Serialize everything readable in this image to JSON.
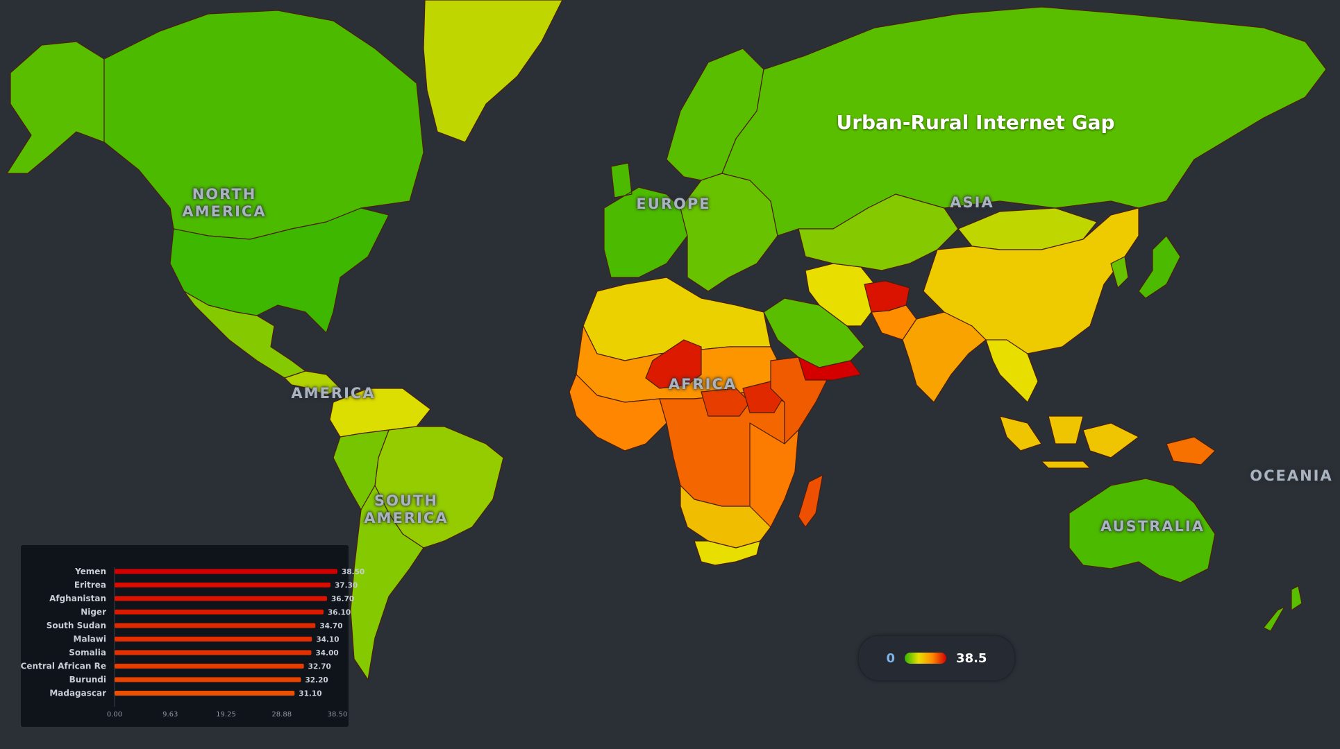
{
  "title": "Urban-Rural Internet Gap",
  "continents": [
    {
      "key": "north-america",
      "lines": [
        "NORTH",
        "AMERICA"
      ]
    },
    {
      "key": "america",
      "lines": [
        "AMERICA"
      ]
    },
    {
      "key": "south-america",
      "lines": [
        "SOUTH",
        "AMERICA"
      ]
    },
    {
      "key": "europe",
      "lines": [
        "EUROPE"
      ]
    },
    {
      "key": "africa",
      "lines": [
        "AFRICA"
      ]
    },
    {
      "key": "asia",
      "lines": [
        "ASIA"
      ]
    },
    {
      "key": "oceania",
      "lines": [
        "OCEANIA"
      ]
    },
    {
      "key": "australia",
      "lines": [
        "AUSTRALIA"
      ]
    }
  ],
  "legend": {
    "min_label": "0",
    "max_label": "38.5",
    "min": 0,
    "max": 38.5,
    "colors": [
      "#2fb400",
      "#e8e000",
      "#ff8a00",
      "#d40000"
    ]
  },
  "colors": {
    "background": "#2b2f36",
    "border": "#4a1e12",
    "panel": "#0f141b"
  },
  "chart_data": {
    "type": "bar",
    "orientation": "horizontal",
    "categories": [
      "Yemen",
      "Eritrea",
      "Afghanistan",
      "Niger",
      "South Sudan",
      "Malawi",
      "Somalia",
      "Central African Re",
      "Burundi",
      "Madagascar"
    ],
    "values": [
      38.5,
      37.3,
      36.7,
      36.1,
      34.7,
      34.1,
      34.0,
      32.7,
      32.2,
      31.1
    ],
    "value_labels": [
      "38.50",
      "37.30",
      "36.70",
      "36.10",
      "34.70",
      "34.10",
      "34.00",
      "32.70",
      "32.20",
      "31.10"
    ],
    "xticks": [
      "0.00",
      "9.63",
      "19.25",
      "28.88",
      "38.50"
    ],
    "xlim": [
      0,
      38.5
    ],
    "title": "",
    "xlabel": "",
    "ylabel": ""
  },
  "map": {
    "regions": [
      {
        "name": "greenland",
        "value": 10
      },
      {
        "name": "canada",
        "value": 2
      },
      {
        "name": "usa",
        "value": 1
      },
      {
        "name": "alaska",
        "value": 3
      },
      {
        "name": "mexico",
        "value": 6
      },
      {
        "name": "central-america",
        "value": 9
      },
      {
        "name": "colombia-venezuela",
        "value": 12
      },
      {
        "name": "brazil",
        "value": 7
      },
      {
        "name": "andes",
        "value": 5
      },
      {
        "name": "southern-cone",
        "value": 6
      },
      {
        "name": "western-europe",
        "value": 2
      },
      {
        "name": "scandinavia",
        "value": 3
      },
      {
        "name": "eastern-europe",
        "value": 4
      },
      {
        "name": "russia",
        "value": 3
      },
      {
        "name": "north-africa",
        "value": 15
      },
      {
        "name": "sahel",
        "value": 24
      },
      {
        "name": "niger",
        "value": 36.1
      },
      {
        "name": "west-africa",
        "value": 26
      },
      {
        "name": "central-africa",
        "value": 29
      },
      {
        "name": "car",
        "value": 32.7
      },
      {
        "name": "south-sudan",
        "value": 34.7
      },
      {
        "name": "horn",
        "value": 30
      },
      {
        "name": "east-africa",
        "value": 27
      },
      {
        "name": "southern-africa",
        "value": 18
      },
      {
        "name": "south-africa",
        "value": 13
      },
      {
        "name": "madagascar",
        "value": 31.1
      },
      {
        "name": "arabia",
        "value": 3
      },
      {
        "name": "yemen",
        "value": 38.5
      },
      {
        "name": "iran",
        "value": 13
      },
      {
        "name": "afghanistan",
        "value": 36.7
      },
      {
        "name": "pakistan",
        "value": 25
      },
      {
        "name": "india",
        "value": 22
      },
      {
        "name": "central-asia",
        "value": 6
      },
      {
        "name": "mongolia",
        "value": 10
      },
      {
        "name": "china",
        "value": 16
      },
      {
        "name": "korea",
        "value": 4
      },
      {
        "name": "japan",
        "value": 2
      },
      {
        "name": "southeast-asia",
        "value": 13
      },
      {
        "name": "indonesia",
        "value": 17
      },
      {
        "name": "png",
        "value": 28
      },
      {
        "name": "australia",
        "value": 2
      },
      {
        "name": "new-zealand",
        "value": 3
      }
    ]
  }
}
